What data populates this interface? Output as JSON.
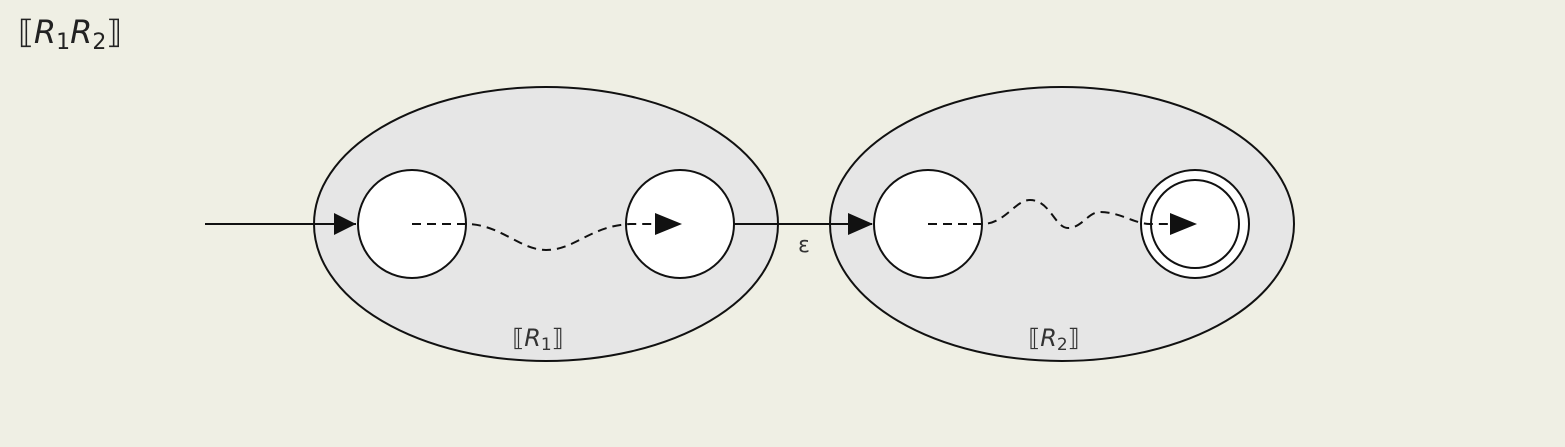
{
  "title": {
    "open_bracket": "⟦",
    "parts": [
      {
        "var": "R",
        "sub": "1"
      },
      {
        "var": "R",
        "sub": "2"
      }
    ],
    "close_bracket": "⟧"
  },
  "machines": [
    {
      "id": "R1",
      "label": {
        "open": "⟦",
        "var": "R",
        "sub": "1",
        "close": "⟧"
      }
    },
    {
      "id": "R2",
      "label": {
        "open": "⟦",
        "var": "R",
        "sub": "2",
        "close": "⟧"
      }
    }
  ],
  "transition": {
    "label": "ε"
  },
  "colors": {
    "background": "#efefe4",
    "machine_fill": "#e6e6e6",
    "state_fill": "#ffffff",
    "stroke": "#111111"
  }
}
